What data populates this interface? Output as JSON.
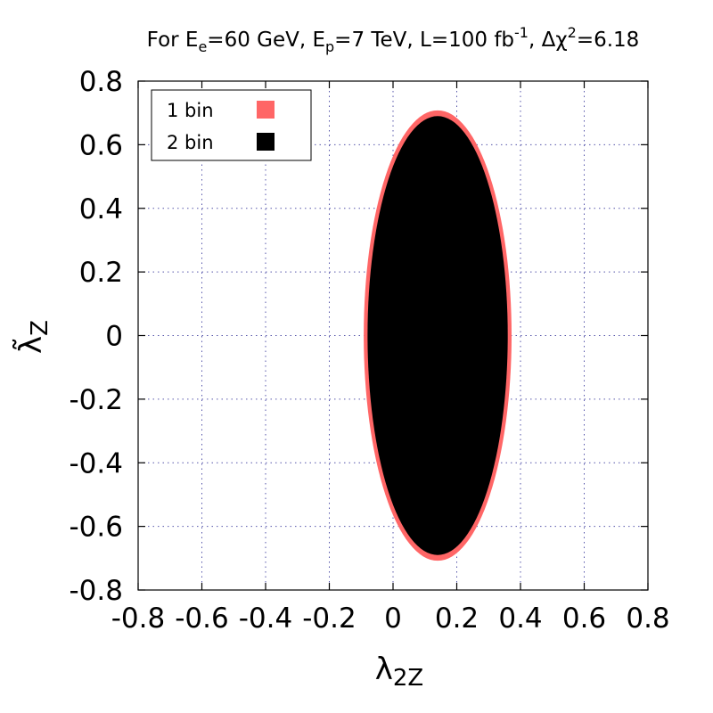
{
  "chart_data": {
    "type": "area",
    "title": {
      "prefix": "For E",
      "ee_sub": "e",
      "ee_val": "=60 GeV, E",
      "ep_sub": "p",
      "ep_val": "=7 TeV, L=100 fb",
      "lumi_sup": "-1",
      "chi_part": ", Δχ",
      "chi_sup": "2",
      "chi_val": "=6.18"
    },
    "xlabel": {
      "main": "λ",
      "sub": "2Z"
    },
    "ylabel": {
      "main": "λ̃",
      "sub": "Z"
    },
    "xlim": [
      -0.8,
      0.8
    ],
    "ylim": [
      -0.8,
      0.8
    ],
    "xticks": [
      {
        "value": -0.8,
        "label": "-0.8"
      },
      {
        "value": -0.6,
        "label": "-0.6"
      },
      {
        "value": -0.4,
        "label": "-0.4"
      },
      {
        "value": -0.2,
        "label": "-0.2"
      },
      {
        "value": 0,
        "label": "0"
      },
      {
        "value": 0.2,
        "label": "0.2"
      },
      {
        "value": 0.4,
        "label": "0.4"
      },
      {
        "value": 0.6,
        "label": "0.6"
      },
      {
        "value": 0.8,
        "label": "0.8"
      }
    ],
    "yticks": [
      {
        "value": -0.8,
        "label": "-0.8"
      },
      {
        "value": -0.6,
        "label": "-0.6"
      },
      {
        "value": -0.4,
        "label": "-0.4"
      },
      {
        "value": -0.2,
        "label": "-0.2"
      },
      {
        "value": 0,
        "label": "0"
      },
      {
        "value": 0.2,
        "label": "0.2"
      },
      {
        "value": 0.4,
        "label": "0.4"
      },
      {
        "value": 0.6,
        "label": "0.6"
      },
      {
        "value": 0.8,
        "label": "0.8"
      }
    ],
    "grid": true,
    "grid_color": "#5555aa",
    "legend_position": "top-left",
    "series": [
      {
        "name": "1 bin",
        "shape": "ellipse",
        "center": [
          0.14,
          0.0
        ],
        "radius_x": 0.232,
        "radius_y": 0.708,
        "color": "#ff6666"
      },
      {
        "name": "2 bin",
        "shape": "ellipse",
        "center": [
          0.14,
          0.0
        ],
        "radius_x": 0.22,
        "radius_y": 0.69,
        "color": "#000000"
      }
    ]
  }
}
